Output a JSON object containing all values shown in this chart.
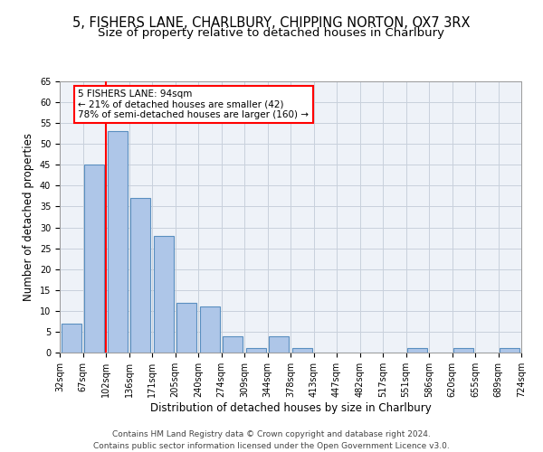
{
  "title1": "5, FISHERS LANE, CHARLBURY, CHIPPING NORTON, OX7 3RX",
  "title2": "Size of property relative to detached houses in Charlbury",
  "xlabel": "Distribution of detached houses by size in Charlbury",
  "ylabel": "Number of detached properties",
  "bar_values": [
    7,
    45,
    53,
    37,
    28,
    12,
    11,
    4,
    1,
    4,
    1,
    0,
    0,
    0,
    0,
    1,
    0,
    1,
    0,
    1
  ],
  "bin_labels": [
    "32sqm",
    "67sqm",
    "102sqm",
    "136sqm",
    "171sqm",
    "205sqm",
    "240sqm",
    "274sqm",
    "309sqm",
    "344sqm",
    "378sqm",
    "413sqm",
    "447sqm",
    "482sqm",
    "517sqm",
    "551sqm",
    "586sqm",
    "620sqm",
    "655sqm",
    "689sqm",
    "724sqm"
  ],
  "bar_color": "#aec6e8",
  "bar_edge_color": "#5a8fc0",
  "bar_edge_width": 0.8,
  "grid_color": "#c8d0dc",
  "background_color": "#eef2f8",
  "red_line_index": 1,
  "annotation_text": "5 FISHERS LANE: 94sqm\n← 21% of detached houses are smaller (42)\n78% of semi-detached houses are larger (160) →",
  "annotation_box_color": "white",
  "annotation_box_edge": "red",
  "ylim": [
    0,
    65
  ],
  "yticks": [
    0,
    5,
    10,
    15,
    20,
    25,
    30,
    35,
    40,
    45,
    50,
    55,
    60,
    65
  ],
  "footer": "Contains HM Land Registry data © Crown copyright and database right 2024.\nContains public sector information licensed under the Open Government Licence v3.0.",
  "title1_fontsize": 10.5,
  "title2_fontsize": 9.5,
  "xlabel_fontsize": 8.5,
  "ylabel_fontsize": 8.5,
  "tick_fontsize": 7,
  "annotation_fontsize": 7.5,
  "footer_fontsize": 6.5
}
